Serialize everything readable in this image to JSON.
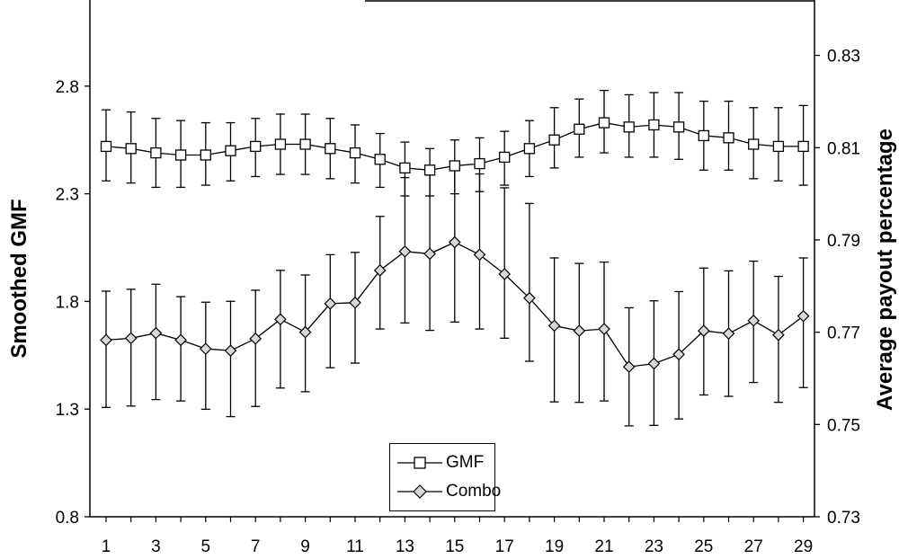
{
  "chart_data": {
    "type": "line",
    "x": [
      1,
      2,
      3,
      4,
      5,
      6,
      7,
      8,
      9,
      10,
      11,
      12,
      13,
      14,
      15,
      16,
      17,
      18,
      19,
      20,
      21,
      22,
      23,
      24,
      25,
      26,
      27,
      28,
      29
    ],
    "x_tick_labels": [
      "1",
      "3",
      "5",
      "7",
      "9",
      "11",
      "13",
      "15",
      "17",
      "19",
      "21",
      "23",
      "25",
      "27",
      "29"
    ],
    "ylabel_left": "Smoothed GMF",
    "ylabel_right": "Average payout percentage",
    "ylim_left": [
      0.8,
      3.2
    ],
    "ylim_right": [
      0.73,
      0.842
    ],
    "y_ticks_left": [
      "0.8",
      "1.3",
      "1.8",
      "2.3",
      "2.8"
    ],
    "y_ticks_right": [
      "0.73",
      "0.75",
      "0.77",
      "0.79",
      "0.81",
      "0.83"
    ],
    "legend_placement": "bottom-center",
    "grid": false,
    "series": [
      {
        "name": "GMF",
        "axis": "left",
        "marker": "square",
        "values": [
          2.52,
          2.51,
          2.49,
          2.48,
          2.48,
          2.5,
          2.52,
          2.53,
          2.53,
          2.51,
          2.49,
          2.46,
          2.42,
          2.41,
          2.43,
          2.44,
          2.47,
          2.51,
          2.55,
          2.6,
          2.63,
          2.61,
          2.62,
          2.61,
          2.57,
          2.56,
          2.53,
          2.52,
          2.52
        ],
        "upper": [
          2.69,
          2.68,
          2.65,
          2.64,
          2.63,
          2.63,
          2.65,
          2.67,
          2.67,
          2.65,
          2.62,
          2.58,
          2.54,
          2.51,
          2.55,
          2.56,
          2.59,
          2.64,
          2.7,
          2.74,
          2.78,
          2.76,
          2.77,
          2.77,
          2.73,
          2.73,
          2.7,
          2.7,
          2.71
        ],
        "lower": [
          2.36,
          2.35,
          2.33,
          2.33,
          2.34,
          2.36,
          2.38,
          2.39,
          2.39,
          2.37,
          2.35,
          2.33,
          2.29,
          2.29,
          2.3,
          2.31,
          2.34,
          2.38,
          2.42,
          2.47,
          2.49,
          2.47,
          2.47,
          2.46,
          2.41,
          2.41,
          2.37,
          2.36,
          2.34
        ]
      },
      {
        "name": "Combo",
        "axis": "right",
        "marker": "diamond",
        "values": [
          0.7683,
          0.7687,
          0.7698,
          0.7683,
          0.7664,
          0.766,
          0.7686,
          0.7728,
          0.77,
          0.7762,
          0.7764,
          0.7834,
          0.7875,
          0.787,
          0.7895,
          0.7868,
          0.7826,
          0.7774,
          0.7714,
          0.7703,
          0.7707,
          0.7625,
          0.7632,
          0.7652,
          0.7703,
          0.7697,
          0.7725,
          0.7694,
          0.7735
        ],
        "upper": [
          0.7789,
          0.7793,
          0.7804,
          0.7777,
          0.7765,
          0.7767,
          0.7791,
          0.7834,
          0.7824,
          0.7868,
          0.7873,
          0.7951,
          0.8035,
          0.8041,
          0.8068,
          0.8043,
          0.8013,
          0.7979,
          0.7861,
          0.7849,
          0.7852,
          0.7753,
          0.7768,
          0.7788,
          0.7839,
          0.7833,
          0.7854,
          0.7821,
          0.7861
        ],
        "lower": [
          0.7537,
          0.754,
          0.7554,
          0.7551,
          0.7533,
          0.7517,
          0.7539,
          0.7579,
          0.7571,
          0.7623,
          0.7633,
          0.7707,
          0.772,
          0.7704,
          0.7722,
          0.7707,
          0.7687,
          0.7637,
          0.7549,
          0.7548,
          0.7551,
          0.7497,
          0.7498,
          0.7512,
          0.7564,
          0.7561,
          0.7591,
          0.7548,
          0.758
        ]
      }
    ]
  },
  "legend": {
    "gmf_label": "GMF",
    "combo_label": "Combo"
  }
}
